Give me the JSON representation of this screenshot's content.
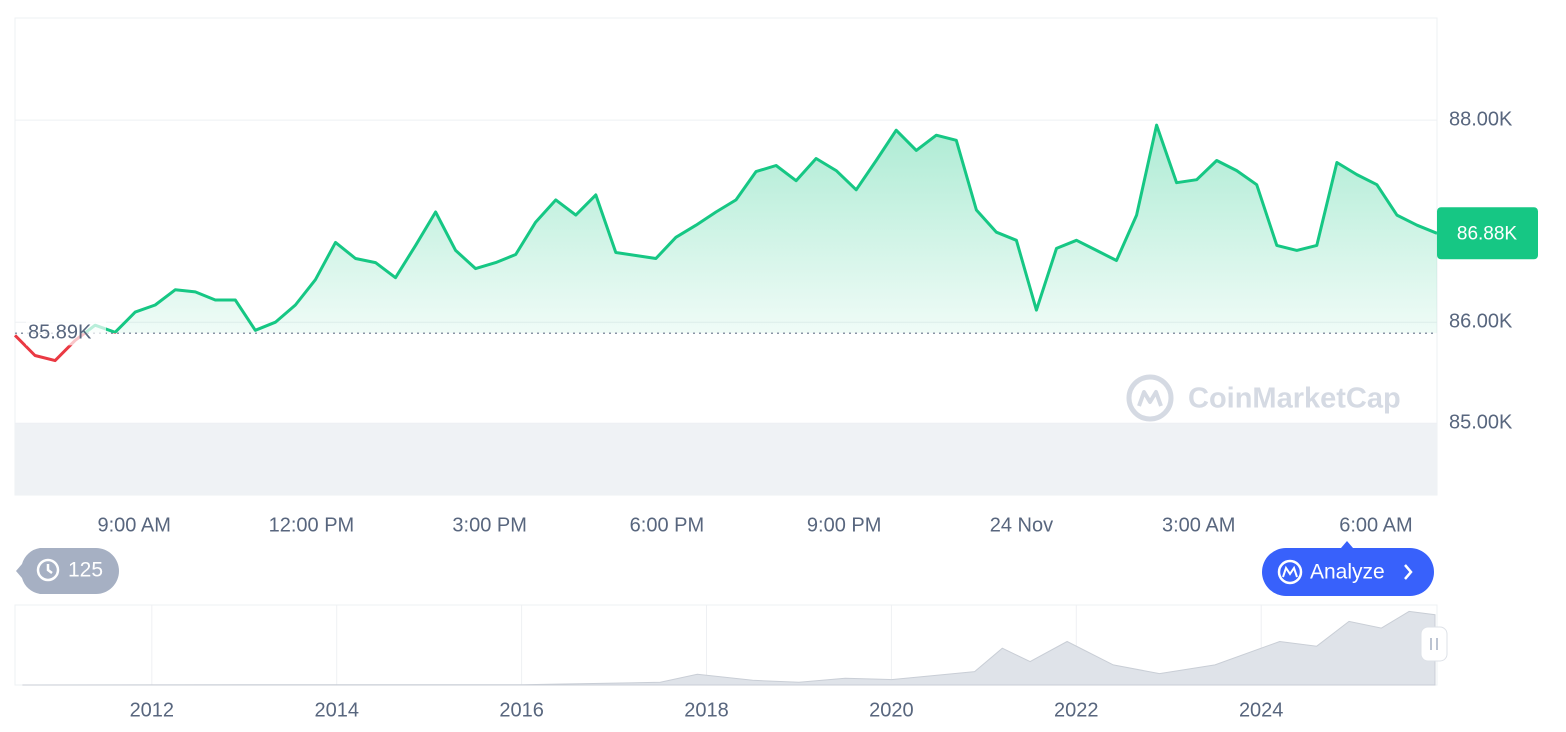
{
  "chart_data": [
    {
      "type": "line",
      "color": "#16c784",
      "down_color": "#ea3943",
      "values": [
        85.87,
        85.67,
        85.62,
        85.82,
        85.97,
        85.9,
        86.1,
        86.17,
        86.32,
        86.3,
        86.22,
        86.22,
        85.92,
        86.0,
        86.17,
        86.42,
        86.79,
        86.63,
        86.59,
        86.44,
        86.76,
        87.09,
        86.71,
        86.53,
        86.59,
        86.67,
        86.99,
        87.21,
        87.06,
        87.26,
        86.69,
        86.66,
        86.63,
        86.84,
        86.96,
        87.09,
        87.21,
        87.49,
        87.55,
        87.4,
        87.62,
        87.5,
        87.31,
        87.6,
        87.9,
        87.7,
        87.85,
        87.8,
        87.11,
        86.89,
        86.81,
        86.12,
        86.73,
        86.81,
        86.71,
        86.61,
        87.06,
        87.95,
        87.38,
        87.41,
        87.6,
        87.5,
        87.36,
        86.76,
        86.71,
        86.76,
        87.58,
        87.46,
        87.36,
        87.06,
        86.96,
        86.88
      ],
      "xlim": [
        0,
        71
      ],
      "xticks": [
        {
          "value": 5.95,
          "label": "9:00 AM"
        },
        {
          "value": 14.8,
          "label": "12:00 PM"
        },
        {
          "value": 23.7,
          "label": "3:00 PM"
        },
        {
          "value": 32.55,
          "label": "6:00 PM"
        },
        {
          "value": 41.4,
          "label": "9:00 PM"
        },
        {
          "value": 50.25,
          "label": "24 Nov"
        },
        {
          "value": 59.1,
          "label": "3:00 AM"
        },
        {
          "value": 67.95,
          "label": "6:00 AM"
        }
      ],
      "ylim": [
        84.29,
        89.01
      ],
      "yticks": [
        {
          "value": 85,
          "label": "85.00K"
        },
        {
          "value": 86,
          "label": "86.00K"
        },
        {
          "value": 88,
          "label": "88.00K"
        }
      ],
      "grid": true,
      "reference_line": {
        "value": 85.89,
        "label": "85.89K"
      },
      "current_price": {
        "value": 86.88,
        "label": "86.88K"
      },
      "watermark": "CoinMarketCap",
      "badge": "125",
      "button": "Analyze"
    },
    {
      "type": "area",
      "color": "#dfe3e9",
      "x": [
        2010.6,
        2013,
        2016,
        2017.5,
        2017.9,
        2018.5,
        2019,
        2019.5,
        2020,
        2020.9,
        2021.2,
        2021.5,
        2021.9,
        2022.4,
        2022.9,
        2023.5,
        2024.2,
        2024.6,
        2024.95,
        2025.3,
        2025.6,
        2025.88
      ],
      "values": [
        0,
        0.5,
        0.5,
        4,
        16,
        7,
        4,
        10,
        8,
        20,
        55,
        35,
        65,
        30,
        17,
        30,
        65,
        58,
        95,
        85,
        110,
        105
      ],
      "xlim": [
        2010.52,
        2025.88
      ],
      "ylim": [
        0,
        110
      ],
      "xticks": [
        2012,
        2014,
        2016,
        2018,
        2020,
        2022,
        2024
      ]
    }
  ]
}
